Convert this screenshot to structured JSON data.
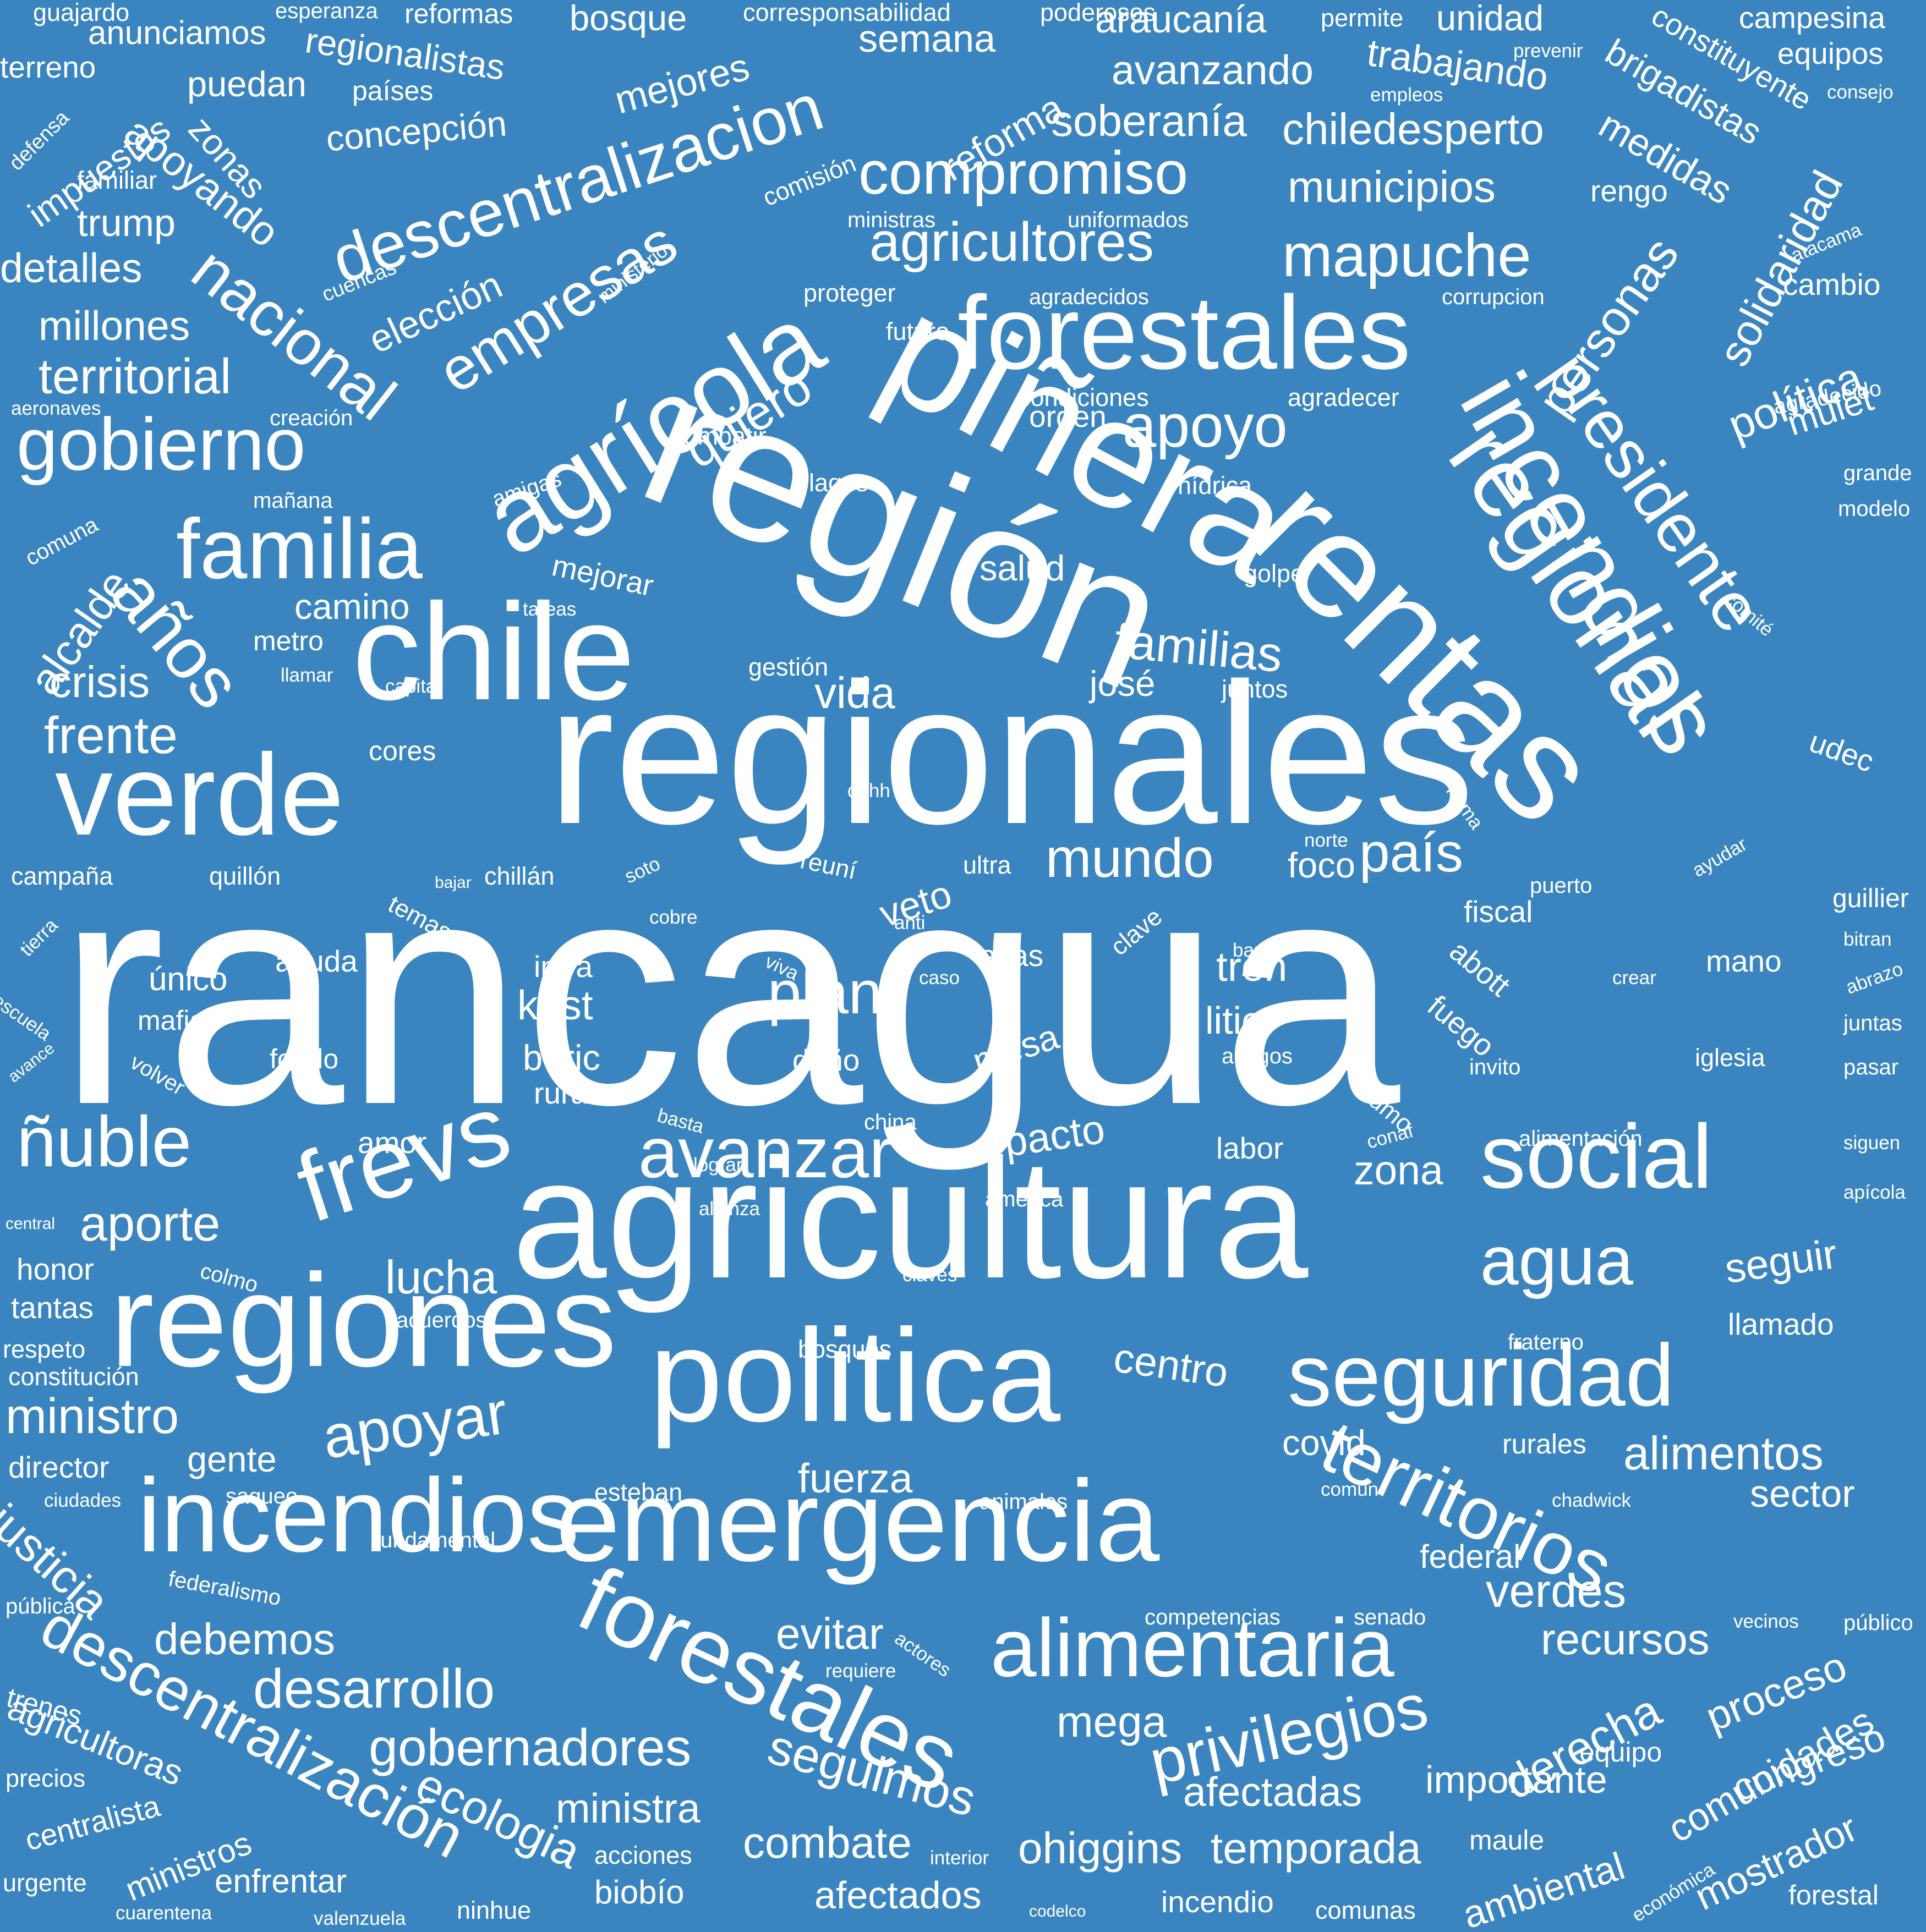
{
  "cloud": {
    "background_color": "#3a85c0",
    "text_color": "#ffffff",
    "words": [
      {
        "text": "rancagua",
        "weight": 100
      },
      {
        "text": "regionales",
        "weight": 60
      },
      {
        "text": "región",
        "weight": 55
      },
      {
        "text": "agricultura",
        "weight": 52
      },
      {
        "text": "piñera",
        "weight": 48
      },
      {
        "text": "rentas",
        "weight": 46
      },
      {
        "text": "politica",
        "weight": 45
      },
      {
        "text": "chile",
        "weight": 44
      },
      {
        "text": "verde",
        "weight": 42
      },
      {
        "text": "regiones",
        "weight": 40
      },
      {
        "text": "emergencia",
        "weight": 38
      },
      {
        "text": "incendios",
        "weight": 36
      },
      {
        "text": "forestales",
        "weight": 34
      },
      {
        "text": "frevs",
        "weight": 33
      },
      {
        "text": "agrícola",
        "weight": 32
      },
      {
        "text": "regional",
        "weight": 30
      },
      {
        "text": "incendios",
        "weight": 30
      },
      {
        "text": "forestales",
        "weight": 30
      },
      {
        "text": "seguridad",
        "weight": 29
      },
      {
        "text": "social",
        "weight": 28
      },
      {
        "text": "familia",
        "weight": 26
      },
      {
        "text": "alimentaria",
        "weight": 26
      },
      {
        "text": "avanzar",
        "weight": 24
      },
      {
        "text": "territorios",
        "weight": 23
      },
      {
        "text": "gobierno",
        "weight": 22
      },
      {
        "text": "presidente",
        "weight": 21
      },
      {
        "text": "descentralizacion",
        "weight": 20
      },
      {
        "text": "ñuble",
        "weight": 20
      },
      {
        "text": "años",
        "weight": 19
      },
      {
        "text": "agua",
        "weight": 19
      },
      {
        "text": "nacional",
        "weight": 18
      },
      {
        "text": "empresas",
        "weight": 18
      },
      {
        "text": "descentralización",
        "weight": 18
      },
      {
        "text": "privilegios",
        "weight": 17
      },
      {
        "text": "apoyo",
        "weight": 17
      },
      {
        "text": "compromiso",
        "weight": 17
      },
      {
        "text": "mapuche",
        "weight": 16
      },
      {
        "text": "mundo",
        "weight": 16
      },
      {
        "text": "país",
        "weight": 16
      },
      {
        "text": "plan",
        "weight": 16
      },
      {
        "text": "apoyar",
        "weight": 16
      },
      {
        "text": "desarrollo",
        "weight": 15
      },
      {
        "text": "gobernadores",
        "weight": 15
      },
      {
        "text": "agricultores",
        "weight": 15
      },
      {
        "text": "alimentos",
        "weight": 14
      },
      {
        "text": "familias",
        "weight": 14
      },
      {
        "text": "territorial",
        "weight": 14
      },
      {
        "text": "ministro",
        "weight": 14
      },
      {
        "text": "personas",
        "weight": 14
      },
      {
        "text": "solidaridad",
        "weight": 13
      },
      {
        "text": "derecha",
        "weight": 13
      },
      {
        "text": "comunidades",
        "weight": 13
      },
      {
        "text": "ecologia",
        "weight": 13
      },
      {
        "text": "seguimos",
        "weight": 13
      },
      {
        "text": "frente",
        "weight": 13
      },
      {
        "text": "aporte",
        "weight": 13
      },
      {
        "text": "lucha",
        "weight": 13
      },
      {
        "text": "quiero",
        "weight": 13
      },
      {
        "text": "debemos",
        "weight": 12
      },
      {
        "text": "recursos",
        "weight": 12
      },
      {
        "text": "verdes",
        "weight": 12
      },
      {
        "text": "seguir",
        "weight": 12
      },
      {
        "text": "combate",
        "weight": 12
      },
      {
        "text": "temporada",
        "weight": 12
      },
      {
        "text": "ohiggins",
        "weight": 12
      },
      {
        "text": "afectadas",
        "weight": 12
      },
      {
        "text": "importante",
        "weight": 12
      },
      {
        "text": "ministra",
        "weight": 12
      },
      {
        "text": "proceso",
        "weight": 12
      },
      {
        "text": "centro",
        "weight": 12
      },
      {
        "text": "vida",
        "weight": 12
      },
      {
        "text": "crisis",
        "weight": 12
      },
      {
        "text": "alcalde",
        "weight": 12
      },
      {
        "text": "elección",
        "weight": 11
      },
      {
        "text": "municipios",
        "weight": 11
      },
      {
        "text": "chiledesperto",
        "weight": 11
      },
      {
        "text": "soberanía",
        "weight": 11
      },
      {
        "text": "política",
        "weight": 11
      },
      {
        "text": "justicia",
        "weight": 11
      },
      {
        "text": "agricultoras",
        "weight": 11
      },
      {
        "text": "congreso",
        "weight": 11
      },
      {
        "text": "mostrador",
        "weight": 11
      },
      {
        "text": "ambiental",
        "weight": 11
      },
      {
        "text": "afectados",
        "weight": 11
      },
      {
        "text": "evitar",
        "weight": 11
      },
      {
        "text": "fuerza",
        "weight": 11
      },
      {
        "text": "mega",
        "weight": 11
      },
      {
        "text": "zona",
        "weight": 11
      },
      {
        "text": "sector",
        "weight": 11
      },
      {
        "text": "mulet",
        "weight": 11
      },
      {
        "text": "millones",
        "weight": 10
      },
      {
        "text": "detalles",
        "weight": 10
      },
      {
        "text": "trump",
        "weight": 10
      },
      {
        "text": "apoyando",
        "weight": 10
      },
      {
        "text": "zonas",
        "weight": 10
      },
      {
        "text": "impuestos",
        "weight": 10
      },
      {
        "text": "concepción",
        "weight": 10
      },
      {
        "text": "puedan",
        "weight": 10
      },
      {
        "text": "regionalistas",
        "weight": 10
      },
      {
        "text": "anunciamos",
        "weight": 10
      },
      {
        "text": "reformas",
        "weight": 9
      },
      {
        "text": "bosque",
        "weight": 10
      },
      {
        "text": "mejores",
        "weight": 10
      },
      {
        "text": "semana",
        "weight": 10
      },
      {
        "text": "reforma",
        "weight": 10
      },
      {
        "text": "araucanía",
        "weight": 10
      },
      {
        "text": "avanzando",
        "weight": 10
      },
      {
        "text": "unidad",
        "weight": 10
      },
      {
        "text": "trabajando",
        "weight": 10
      },
      {
        "text": "brigadistas",
        "weight": 10
      },
      {
        "text": "constituyente",
        "weight": 9
      },
      {
        "text": "medidas",
        "weight": 10
      },
      {
        "text": "rengo",
        "weight": 9
      },
      {
        "text": "campesina",
        "weight": 9
      },
      {
        "text": "equipos",
        "weight": 9
      },
      {
        "text": "cambio",
        "weight": 9
      },
      {
        "text": "grande",
        "weight": 8
      },
      {
        "text": "udec",
        "weight": 9
      },
      {
        "text": "guillier",
        "weight": 8
      },
      {
        "text": "mano",
        "weight": 9
      },
      {
        "text": "iglesia",
        "weight": 8
      },
      {
        "text": "salud",
        "weight": 10
      },
      {
        "text": "orden",
        "weight": 9
      },
      {
        "text": "josé",
        "weight": 10
      },
      {
        "text": "camino",
        "weight": 10
      },
      {
        "text": "metro",
        "weight": 8
      },
      {
        "text": "veto",
        "weight": 10
      },
      {
        "text": "foco",
        "weight": 10
      },
      {
        "text": "fiscal",
        "weight": 9
      },
      {
        "text": "abott",
        "weight": 9
      },
      {
        "text": "fuego",
        "weight": 9
      },
      {
        "text": "tren",
        "weight": 11
      },
      {
        "text": "litio",
        "weight": 10
      },
      {
        "text": "kast",
        "weight": 11
      },
      {
        "text": "infra",
        "weight": 10
      },
      {
        "text": "boric",
        "weight": 10
      },
      {
        "text": "rural",
        "weight": 10
      },
      {
        "text": "altas",
        "weight": 9
      },
      {
        "text": "mesa",
        "weight": 10
      },
      {
        "text": "daño",
        "weight": 9
      },
      {
        "text": "ayuda",
        "weight": 9
      },
      {
        "text": "único",
        "weight": 10
      },
      {
        "text": "mafia",
        "weight": 9
      },
      {
        "text": "fondo",
        "weight": 9
      },
      {
        "text": "pacto",
        "weight": 11
      },
      {
        "text": "amor",
        "weight": 9
      },
      {
        "text": "labor",
        "weight": 9
      },
      {
        "text": "gente",
        "weight": 10
      },
      {
        "text": "covid",
        "weight": 10
      },
      {
        "text": "llamado",
        "weight": 9
      },
      {
        "text": "rurales",
        "weight": 9
      },
      {
        "text": "federal",
        "weight": 10
      },
      {
        "text": "director",
        "weight": 9
      },
      {
        "text": "esteban",
        "weight": 8
      },
      {
        "text": "honor",
        "weight": 9
      },
      {
        "text": "tantas",
        "weight": 9
      },
      {
        "text": "respeto",
        "weight": 8
      },
      {
        "text": "constitución",
        "weight": 8
      },
      {
        "text": "campaña",
        "weight": 8
      },
      {
        "text": "quillón",
        "weight": 8
      },
      {
        "text": "chillán",
        "weight": 8
      },
      {
        "text": "bajar",
        "weight": 6
      },
      {
        "text": "temas",
        "weight": 8
      },
      {
        "text": "soto",
        "weight": 6
      },
      {
        "text": "reuní",
        "weight": 8
      },
      {
        "text": "ultra",
        "weight": 8
      },
      {
        "text": "norte",
        "weight": 6
      },
      {
        "text": "cores",
        "weight": 9
      },
      {
        "text": "llamar",
        "weight": 6
      },
      {
        "text": "capital",
        "weight": 6
      },
      {
        "text": "juntos",
        "weight": 8
      },
      {
        "text": "gestión",
        "weight": 8
      },
      {
        "text": "tareas",
        "weight": 6
      },
      {
        "text": "mejorar",
        "weight": 9
      },
      {
        "text": "golpe",
        "weight": 8
      },
      {
        "text": "hídrica",
        "weight": 8
      },
      {
        "text": "lagos",
        "weight": 8
      },
      {
        "text": "amigas",
        "weight": 7
      },
      {
        "text": "mañana",
        "weight": 7
      },
      {
        "text": "comuna",
        "weight": 7
      },
      {
        "text": "combatir",
        "weight": 8
      },
      {
        "text": "creación",
        "weight": 7
      },
      {
        "text": "aeronaves",
        "weight": 6
      },
      {
        "text": "condiciones",
        "weight": 8
      },
      {
        "text": "agradecer",
        "weight": 8
      },
      {
        "text": "agradecido",
        "weight": 7
      },
      {
        "text": "modelo",
        "weight": 7
      },
      {
        "text": "comité",
        "weight": 6
      },
      {
        "text": "futuro",
        "weight": 8
      },
      {
        "text": "proteger",
        "weight": 8
      },
      {
        "text": "agradecidos",
        "weight": 8
      },
      {
        "text": "corrupcion",
        "weight": 8
      },
      {
        "text": "atacama",
        "weight": 6
      },
      {
        "text": "uniformados",
        "weight": 7
      },
      {
        "text": "ministras",
        "weight": 7
      },
      {
        "text": "ministerio",
        "weight": 6
      },
      {
        "text": "cuencas",
        "weight": 6
      },
      {
        "text": "comisión",
        "weight": 8
      },
      {
        "text": "familiar",
        "weight": 7
      },
      {
        "text": "defensa",
        "weight": 6
      },
      {
        "text": "países",
        "weight": 8
      },
      {
        "text": "terreno",
        "weight": 9
      },
      {
        "text": "guajardo",
        "weight": 8
      },
      {
        "text": "esperanza",
        "weight": 7
      },
      {
        "text": "corresponsabilidad",
        "weight": 8
      },
      {
        "text": "poderosos",
        "weight": 8
      },
      {
        "text": "permite",
        "weight": 8
      },
      {
        "text": "prevenir",
        "weight": 6
      },
      {
        "text": "empleos",
        "weight": 6
      },
      {
        "text": "consejo",
        "weight": 6
      },
      {
        "text": "ddhh",
        "weight": 6
      },
      {
        "text": "forma",
        "weight": 6
      },
      {
        "text": "ayudar",
        "weight": 6
      },
      {
        "text": "puerto",
        "weight": 7
      },
      {
        "text": "anti",
        "weight": 6
      },
      {
        "text": "viva",
        "weight": 6
      },
      {
        "text": "caso",
        "weight": 6
      },
      {
        "text": "banal",
        "weight": 6
      },
      {
        "text": "amigos",
        "weight": 7
      },
      {
        "text": "cobre",
        "weight": 6
      },
      {
        "text": "clave",
        "weight": 8
      },
      {
        "text": "humo",
        "weight": 7
      },
      {
        "text": "invito",
        "weight": 8
      },
      {
        "text": "crear",
        "weight": 6
      },
      {
        "text": "bitran",
        "weight": 6
      },
      {
        "text": "abrazo",
        "weight": 6
      },
      {
        "text": "juntas",
        "weight": 7
      },
      {
        "text": "pasar",
        "weight": 7
      },
      {
        "text": "siguen",
        "weight": 6
      },
      {
        "text": "apícola",
        "weight": 6
      },
      {
        "text": "tierra",
        "weight": 6
      },
      {
        "text": "escuela",
        "weight": 6
      },
      {
        "text": "avance",
        "weight": 5
      },
      {
        "text": "volver",
        "weight": 7
      },
      {
        "text": "basta",
        "weight": 6
      },
      {
        "text": "china",
        "weight": 7
      },
      {
        "text": "lograr",
        "weight": 6
      },
      {
        "text": "américa",
        "weight": 7
      },
      {
        "text": "alianza",
        "weight": 6
      },
      {
        "text": "conaf",
        "weight": 6
      },
      {
        "text": "alimentación",
        "weight": 7
      },
      {
        "text": "central",
        "weight": 5
      },
      {
        "text": "colmo",
        "weight": 7
      },
      {
        "text": "claves",
        "weight": 6
      },
      {
        "text": "acuerdos",
        "weight": 7
      },
      {
        "text": "bosques",
        "weight": 8
      },
      {
        "text": "fraterno",
        "weight": 7
      },
      {
        "text": "ciudades",
        "weight": 6
      },
      {
        "text": "saqueo",
        "weight": 7
      },
      {
        "text": "animales",
        "weight": 7
      },
      {
        "text": "común",
        "weight": 6
      },
      {
        "text": "chadwick",
        "weight": 6
      },
      {
        "text": "fundamental",
        "weight": 7
      },
      {
        "text": "pública",
        "weight": 7
      },
      {
        "text": "federalismo",
        "weight": 7
      },
      {
        "text": "competencias",
        "weight": 7
      },
      {
        "text": "senado",
        "weight": 7
      },
      {
        "text": "vecinos",
        "weight": 6
      },
      {
        "text": "público",
        "weight": 7
      },
      {
        "text": "actores",
        "weight": 6
      },
      {
        "text": "requiere",
        "weight": 6
      },
      {
        "text": "trenes",
        "weight": 8
      },
      {
        "text": "precios",
        "weight": 7
      },
      {
        "text": "centralista",
        "weight": 8
      },
      {
        "text": "ministros",
        "weight": 9
      },
      {
        "text": "urgente",
        "weight": 7
      },
      {
        "text": "cuarentena",
        "weight": 6
      },
      {
        "text": "valenzuela",
        "weight": 6
      },
      {
        "text": "enfrentar",
        "weight": 9
      },
      {
        "text": "ninhue",
        "weight": 7
      },
      {
        "text": "acciones",
        "weight": 7
      },
      {
        "text": "biobío",
        "weight": 9
      },
      {
        "text": "interior",
        "weight": 6
      },
      {
        "text": "codelco",
        "weight": 5
      },
      {
        "text": "incendio",
        "weight": 8
      },
      {
        "text": "comunas",
        "weight": 7
      },
      {
        "text": "económica",
        "weight": 6
      },
      {
        "text": "maule",
        "weight": 8
      },
      {
        "text": "equipo",
        "weight": 8
      },
      {
        "text": "forestal",
        "weight": 8
      }
    ]
  }
}
